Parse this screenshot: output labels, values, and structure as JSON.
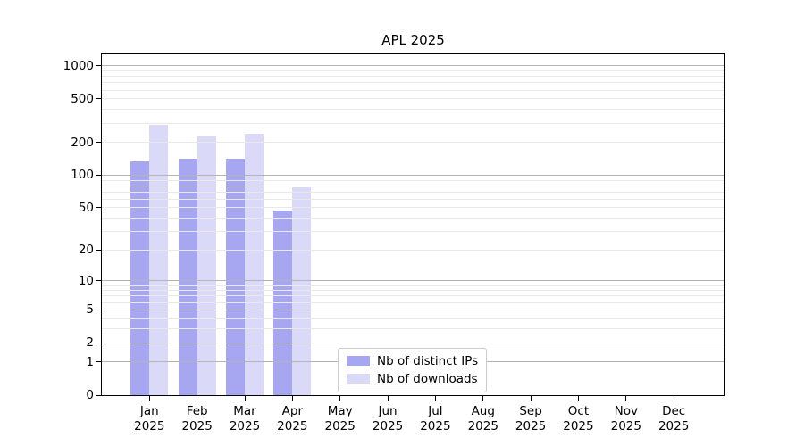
{
  "title": "APL 2025",
  "chart_data": {
    "type": "bar",
    "title": "APL 2025",
    "categories": [
      "Jan 2025",
      "Feb 2025",
      "Mar 2025",
      "Apr 2025",
      "May 2025",
      "Jun 2025",
      "Jul 2025",
      "Aug 2025",
      "Sep 2025",
      "Oct 2025",
      "Nov 2025",
      "Dec 2025"
    ],
    "series": [
      {
        "name": "Nb of distinct IPs",
        "color": "#a6a6f1",
        "values": [
          135,
          143,
          143,
          47,
          0,
          0,
          0,
          0,
          0,
          0,
          0,
          0
        ]
      },
      {
        "name": "Nb of downloads",
        "color": "#dadaf8",
        "values": [
          290,
          228,
          242,
          78,
          0,
          0,
          0,
          0,
          0,
          0,
          0,
          0
        ]
      }
    ],
    "yscale": "log(1+y)",
    "yticks": [
      1000,
      500,
      200,
      100,
      50,
      20,
      10,
      5,
      2,
      1,
      0
    ],
    "ylim": [
      0,
      1275
    ],
    "xlabel": "",
    "ylabel": "",
    "grid": {
      "axis": "y",
      "major_at": [
        1,
        10,
        100,
        1000
      ],
      "minor": true,
      "major_color": "#b4b4b4",
      "minor_color": "#e9e9e9"
    },
    "legend_position": "lower center"
  },
  "colors": {
    "background": "#ffffff",
    "spine": "#000000",
    "text": "#000000"
  }
}
